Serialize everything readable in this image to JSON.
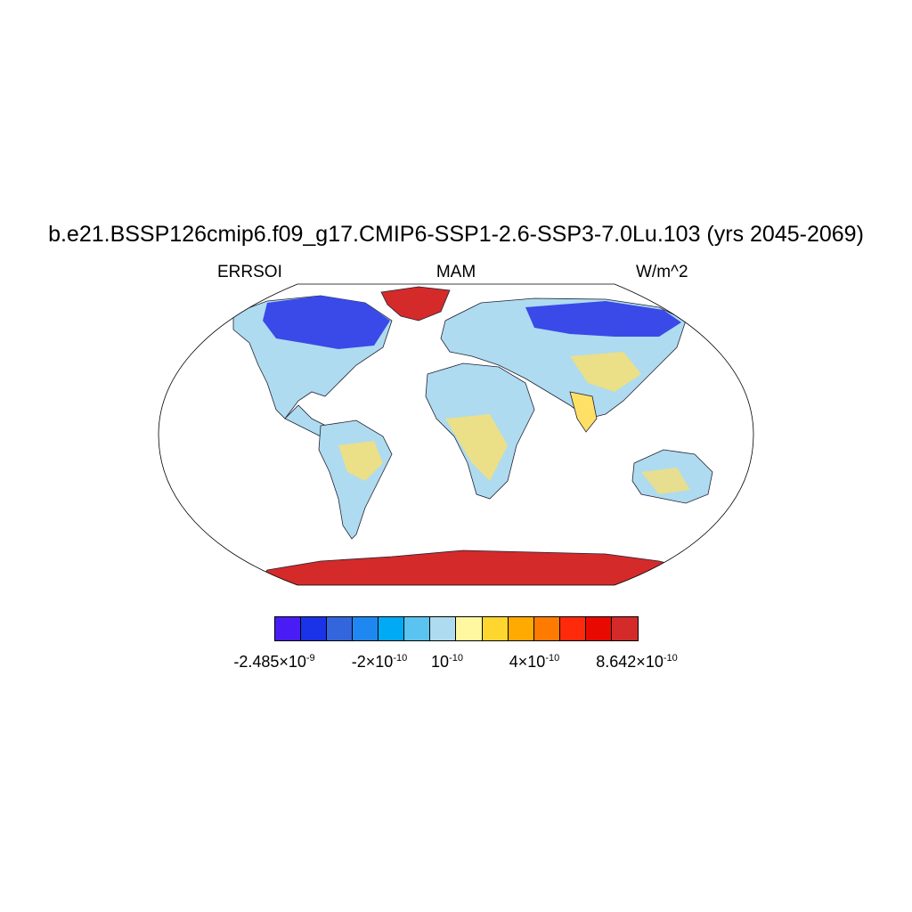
{
  "title": "b.e21.BSSP126cmip6.f09_g17.CMIP6-SSP1-2.6-SSP3-7.0Lu.103 (yrs 2045-2069)",
  "left_label": "ERRSOI",
  "center_label": "MAM",
  "right_label": "W/m^2",
  "colorbar": {
    "colors": [
      "#4a1cf5",
      "#1a33e8",
      "#3366dd",
      "#1e88f0",
      "#00aaf5",
      "#5bc3f0",
      "#aedbf0",
      "#fff8a0",
      "#ffd630",
      "#ffaa00",
      "#ff7a00",
      "#ff2a0a",
      "#e80a00",
      "#d42a2a"
    ],
    "labels": [
      {
        "base": "-2.485×10",
        "exp": "-9"
      },
      {
        "base": "-2×10",
        "exp": "-10"
      },
      {
        "base": "10",
        "exp": "-10"
      },
      {
        "base": "4×10",
        "exp": "-10"
      },
      {
        "base": "8.642×10",
        "exp": "-10"
      }
    ]
  },
  "map_fills": {
    "ocean": "#ffffff",
    "land_neutral": "#aedbf0",
    "antarctica": "#d42a2a",
    "greenland": "#d42a2a",
    "boreal_negative": "#2a3ae0",
    "warm_patches": "#ffd630"
  }
}
